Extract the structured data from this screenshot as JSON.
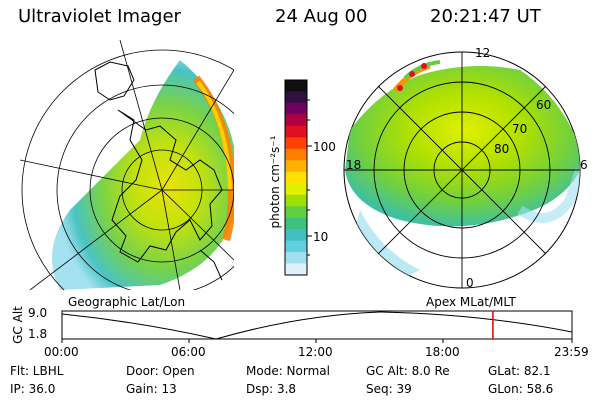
{
  "header": {
    "title": "Ultraviolet Imager",
    "date": "24 Aug 00",
    "time": "20:21:47 UT"
  },
  "colorbar": {
    "label": "photon cm⁻²s⁻¹",
    "ticks": [
      "100",
      "10"
    ],
    "colors": [
      "#101010",
      "#301040",
      "#700060",
      "#b00040",
      "#e01020",
      "#ff4000",
      "#ff8000",
      "#ffb000",
      "#ffe000",
      "#e0f000",
      "#a0e000",
      "#60d040",
      "#40c080",
      "#40c0c0",
      "#60d0e0",
      "#a0e0f0",
      "#e0f0f8"
    ]
  },
  "left_map": {
    "label": "Geographic Lat/Lon"
  },
  "right_map": {
    "label": "Apex MLat/MLT",
    "mlt_labels": {
      "top": "12",
      "left": "18",
      "right": "6",
      "bottom": "0"
    },
    "lat_labels": [
      "60",
      "70",
      "80"
    ]
  },
  "timeline": {
    "ylabel": "GC Alt",
    "yticks": [
      "9.0",
      "1.8"
    ],
    "xticks": [
      "00:00",
      "06:00",
      "12:00",
      "18:00",
      "23:59"
    ],
    "marker_fraction": 0.845,
    "marker_color": "#e00000"
  },
  "info": {
    "flt": "Flt: LBHL",
    "ip": "IP: 36.0",
    "door": "Door: Open",
    "gain": "Gain: 13",
    "mode": "Mode: Normal",
    "dsp": "Dsp:     3.8",
    "gcalt": "GC Alt: 8.0 Re",
    "seq": "Seq: 39",
    "glat": "GLat:  82.1",
    "glon": "GLon:  58.6"
  }
}
